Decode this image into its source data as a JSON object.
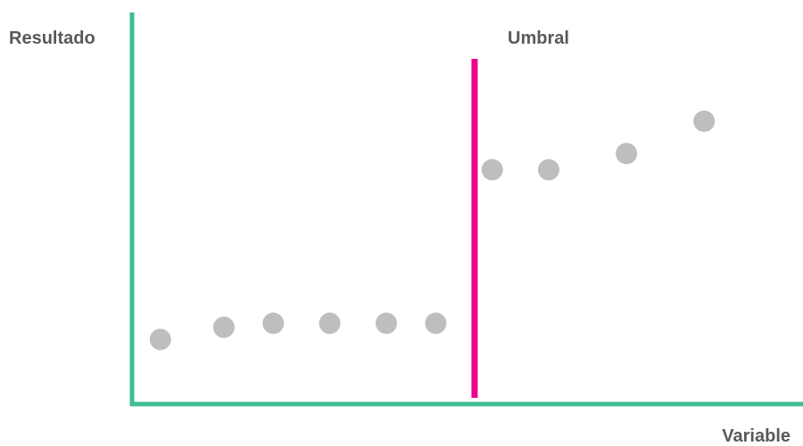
{
  "chart_data": {
    "type": "scatter",
    "title": "",
    "xlabel": "Variable",
    "ylabel": "Resultado",
    "threshold_label": "Umbral",
    "threshold_x": 4.45,
    "points": [
      {
        "x": 0,
        "y": 1.6
      },
      {
        "x": 0.9,
        "y": 1.9
      },
      {
        "x": 1.6,
        "y": 2.0
      },
      {
        "x": 2.4,
        "y": 2.0
      },
      {
        "x": 3.2,
        "y": 2.0
      },
      {
        "x": 3.9,
        "y": 2.0
      },
      {
        "x": 4.7,
        "y": 5.8
      },
      {
        "x": 5.5,
        "y": 5.8
      },
      {
        "x": 6.6,
        "y": 6.2
      },
      {
        "x": 7.7,
        "y": 7.0
      }
    ],
    "xlim": [
      -0.4,
      9.1
    ],
    "ylim": [
      0,
      10
    ],
    "ticks_shown": false,
    "grid": false,
    "colors": {
      "axes": "#3dbd91",
      "threshold": "#ec008c",
      "points": "#bcbec0",
      "labels": "#58595b"
    }
  }
}
